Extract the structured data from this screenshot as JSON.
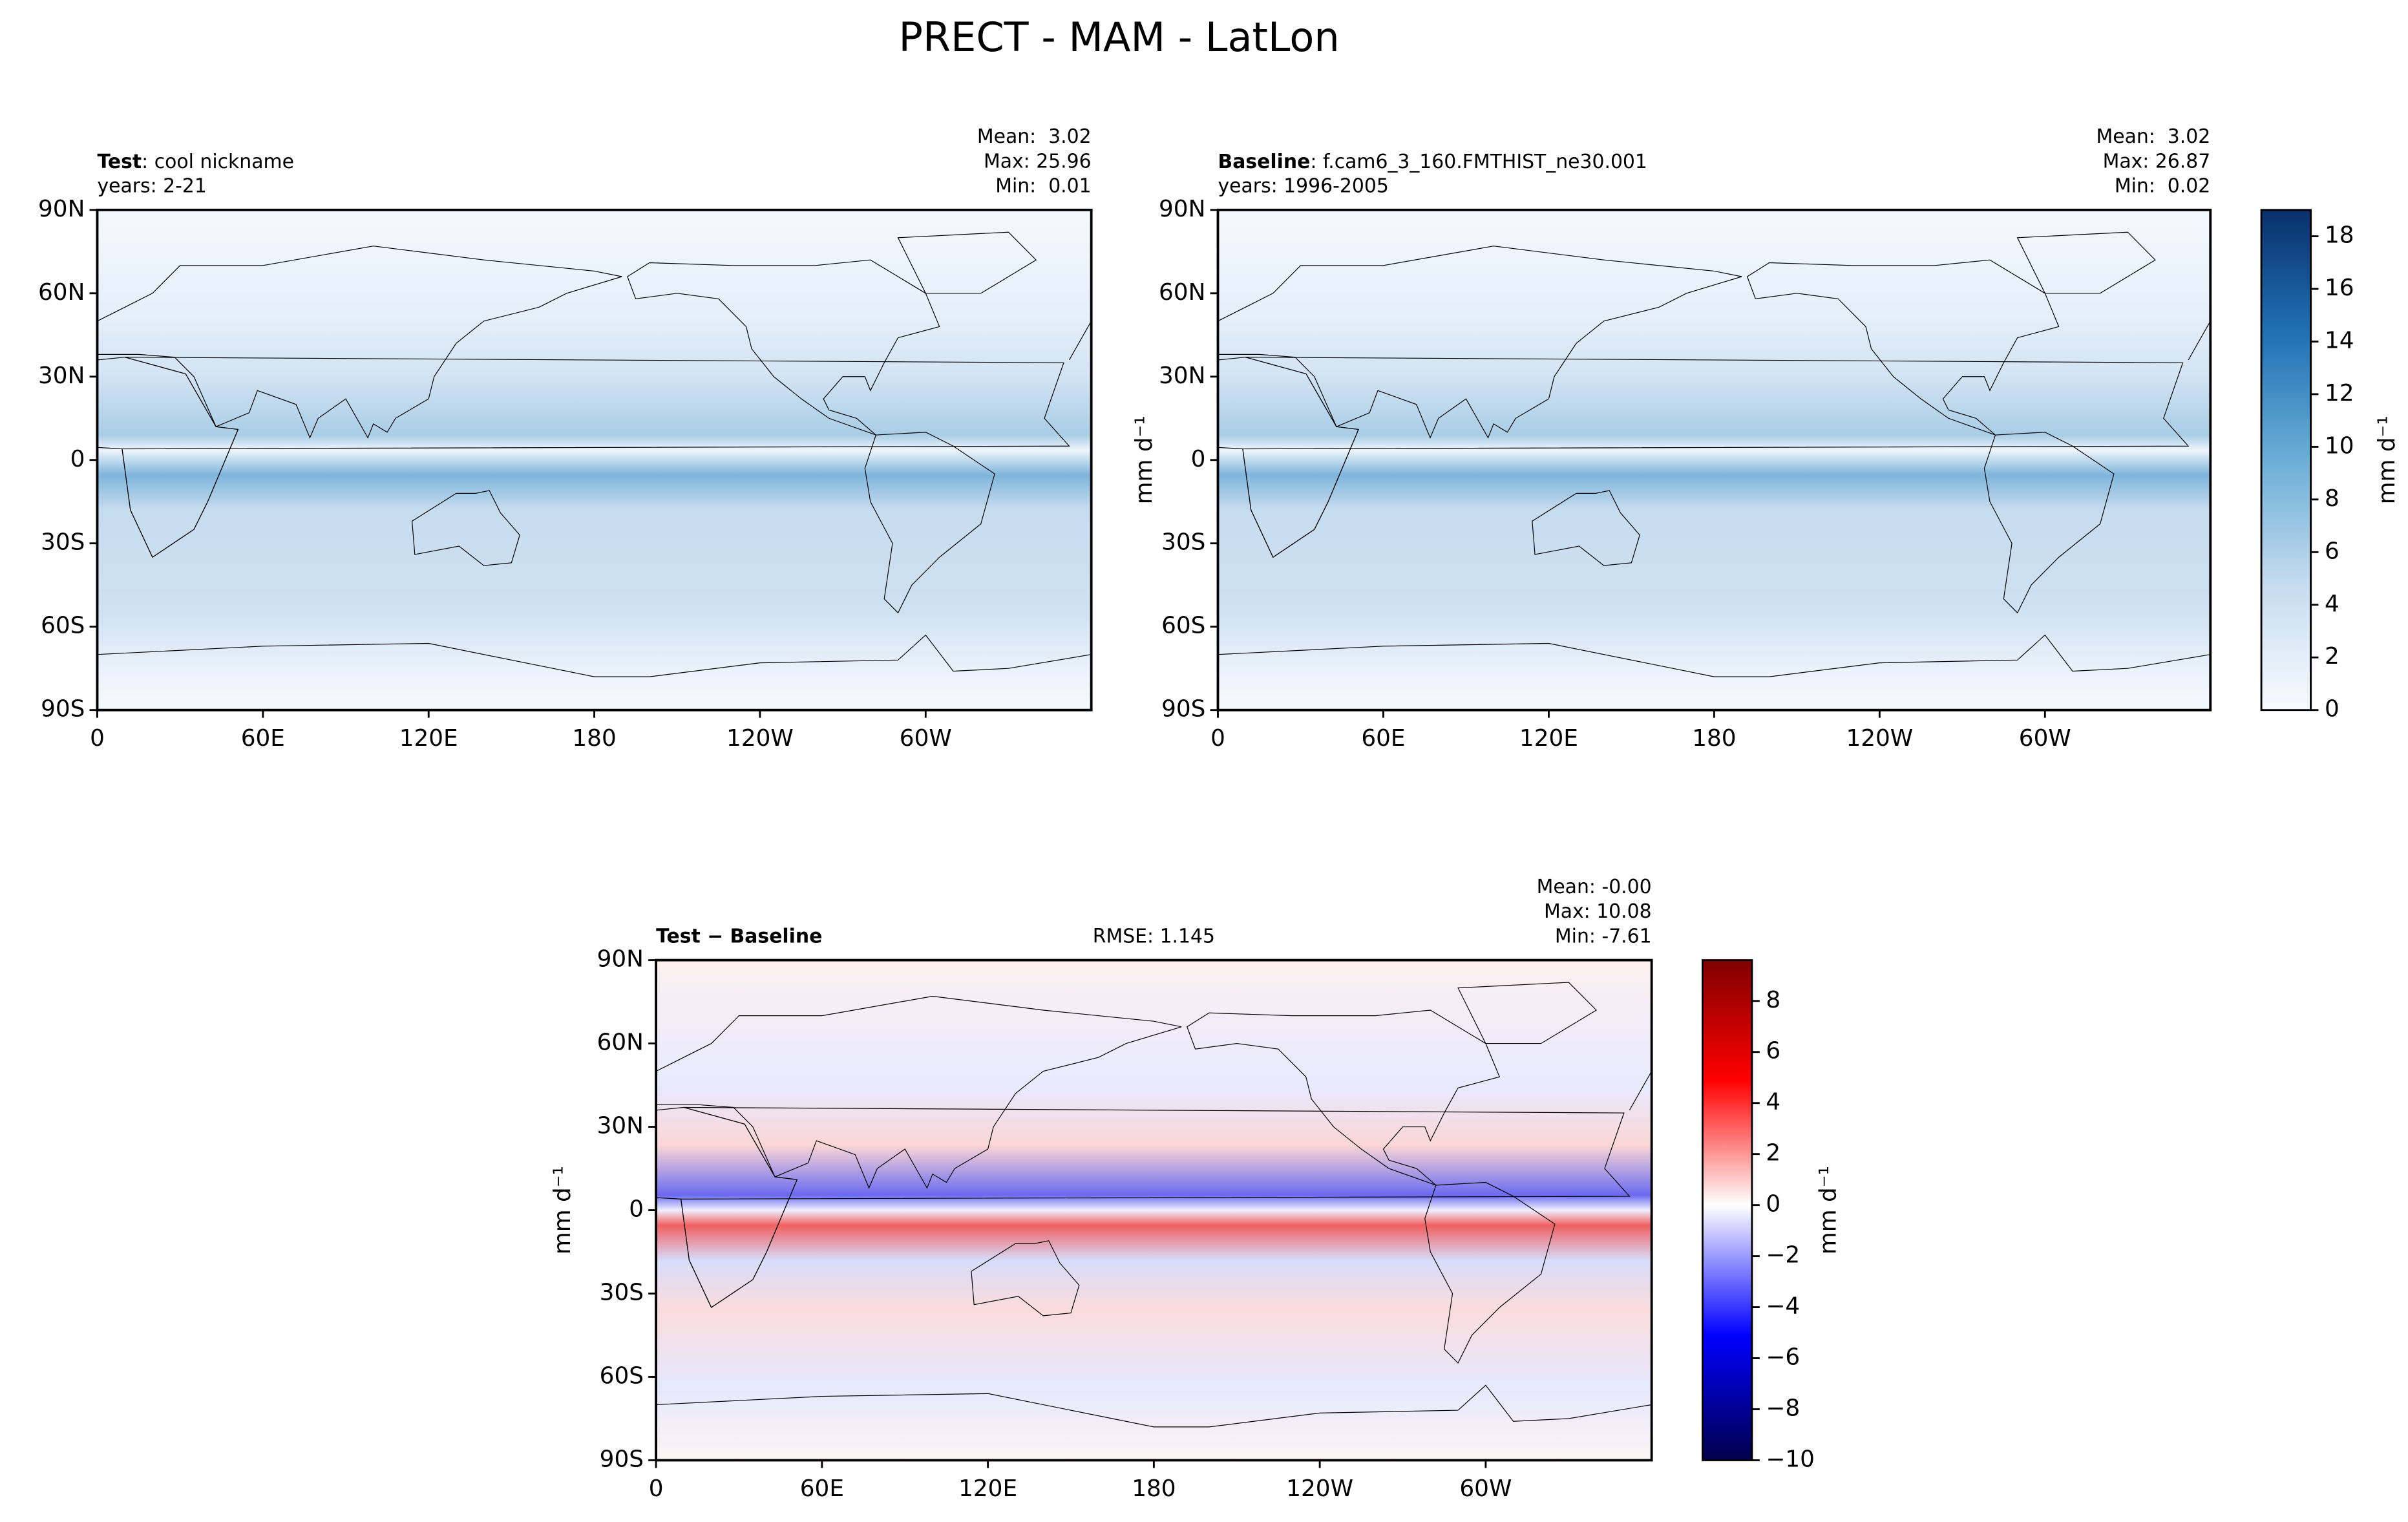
{
  "title": "PRECT - MAM - LatLon",
  "chart_data": [
    {
      "type": "map",
      "label": "Test",
      "sublabel": ": cool nickname",
      "years": "years: 2-21",
      "stats": [
        "Mean:  3.02",
        "Max: 25.96",
        "Min:  0.01"
      ],
      "xlim": [
        0,
        360
      ],
      "xticks": [
        0,
        {
          "value": 60,
          "label": "60E"
        },
        {
          "value": 120,
          "label": "120E"
        },
        180,
        {
          "value": 240,
          "label": "120W"
        },
        {
          "value": 300,
          "label": "60W"
        }
      ],
      "ylim": [
        -90,
        90
      ],
      "yticks": [
        {
          "value": -90,
          "label": "90S"
        },
        {
          "value": -60,
          "label": "60S"
        },
        {
          "value": -30,
          "label": "30S"
        },
        0,
        {
          "value": 30,
          "label": "30N"
        },
        {
          "value": 60,
          "label": "60N"
        },
        {
          "value": 90,
          "label": "90N"
        }
      ],
      "colormap": "blues"
    },
    {
      "type": "map",
      "label": "Baseline",
      "sublabel": ": f.cam6_3_160.FMTHIST_ne30.001",
      "years": "years: 1996-2005",
      "stats": [
        "Mean:  3.02",
        "Max: 26.87",
        "Min:  0.02"
      ],
      "ylabel": "mm d⁻¹",
      "xlim": [
        0,
        360
      ],
      "xticks": [
        0,
        {
          "value": 60,
          "label": "60E"
        },
        {
          "value": 120,
          "label": "120E"
        },
        180,
        {
          "value": 240,
          "label": "120W"
        },
        {
          "value": 300,
          "label": "60W"
        }
      ],
      "ylim": [
        -90,
        90
      ],
      "yticks": [
        {
          "value": -90,
          "label": "90S"
        },
        {
          "value": -60,
          "label": "60S"
        },
        {
          "value": -30,
          "label": "30S"
        },
        0,
        {
          "value": 30,
          "label": "30N"
        },
        {
          "value": 60,
          "label": "60N"
        },
        {
          "value": 90,
          "label": "90N"
        }
      ],
      "colormap": "blues",
      "colorbar": {
        "label": "mm d⁻¹",
        "ylim": [
          0,
          19
        ],
        "yticks": [
          0,
          2,
          4,
          6,
          8,
          10,
          12,
          14,
          16,
          18
        ]
      }
    },
    {
      "type": "map",
      "label": "Test − Baseline",
      "rmse": "RMSE: 1.145",
      "stats": [
        "Mean: -0.00",
        "Max: 10.08",
        "Min: -7.61"
      ],
      "ylabel": "mm d⁻¹",
      "xlim": [
        0,
        360
      ],
      "xticks": [
        0,
        {
          "value": 60,
          "label": "60E"
        },
        {
          "value": 120,
          "label": "120E"
        },
        180,
        {
          "value": 240,
          "label": "120W"
        },
        {
          "value": 300,
          "label": "60W"
        }
      ],
      "ylim": [
        -90,
        90
      ],
      "yticks": [
        {
          "value": -90,
          "label": "90S"
        },
        {
          "value": -60,
          "label": "60S"
        },
        {
          "value": -30,
          "label": "30S"
        },
        0,
        {
          "value": 30,
          "label": "30N"
        },
        {
          "value": 60,
          "label": "60N"
        },
        {
          "value": 90,
          "label": "90N"
        }
      ],
      "colormap": "diverging",
      "colorbar": {
        "label": "mm d⁻¹",
        "ylim": [
          -10,
          9.6
        ],
        "yticks": [
          {
            "value": -10,
            "label": "−10"
          },
          {
            "value": -8,
            "label": "−8"
          },
          {
            "value": -6,
            "label": "−6"
          },
          {
            "value": -4,
            "label": "−4"
          },
          {
            "value": -2,
            "label": "−2"
          },
          0,
          2,
          4,
          6,
          8
        ]
      }
    }
  ]
}
